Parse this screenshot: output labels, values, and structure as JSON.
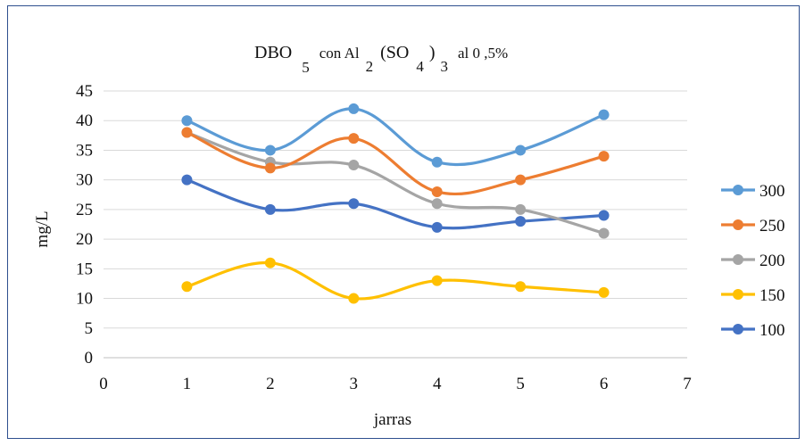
{
  "chart_data": {
    "type": "line",
    "title": {
      "pre": "DBO",
      "sub1": "5",
      "mid": "con   Al",
      "sub2": "2",
      "paren": "(SO",
      "sub3": "4",
      "close": ")",
      "sub4": "3",
      "post": "al  0 ,5%"
    },
    "xlabel": "jarras",
    "ylabel": "mg/L",
    "xlim": [
      0,
      7
    ],
    "ylim": [
      0,
      45
    ],
    "xticks": [
      0,
      1,
      2,
      3,
      4,
      5,
      6,
      7
    ],
    "yticks": [
      0,
      5,
      10,
      15,
      20,
      25,
      30,
      35,
      40,
      45
    ],
    "grid": "horizontal",
    "smooth": true,
    "legend_position": "right",
    "x": [
      1,
      2,
      3,
      4,
      5,
      6
    ],
    "series": [
      {
        "name": "300",
        "color": "#5b9bd5",
        "values": [
          40,
          35,
          42,
          33,
          35,
          41
        ]
      },
      {
        "name": "250",
        "color": "#ed7d31",
        "values": [
          38,
          32,
          37,
          28,
          30,
          34
        ]
      },
      {
        "name": "200",
        "color": "#a5a5a5",
        "values": [
          38,
          33,
          32.5,
          26,
          25,
          21
        ]
      },
      {
        "name": "150",
        "color": "#ffc000",
        "values": [
          12,
          16,
          10,
          13,
          12,
          11
        ]
      },
      {
        "name": "100",
        "color": "#4472c4",
        "values": [
          30,
          25,
          26,
          22,
          23,
          24
        ]
      }
    ]
  }
}
